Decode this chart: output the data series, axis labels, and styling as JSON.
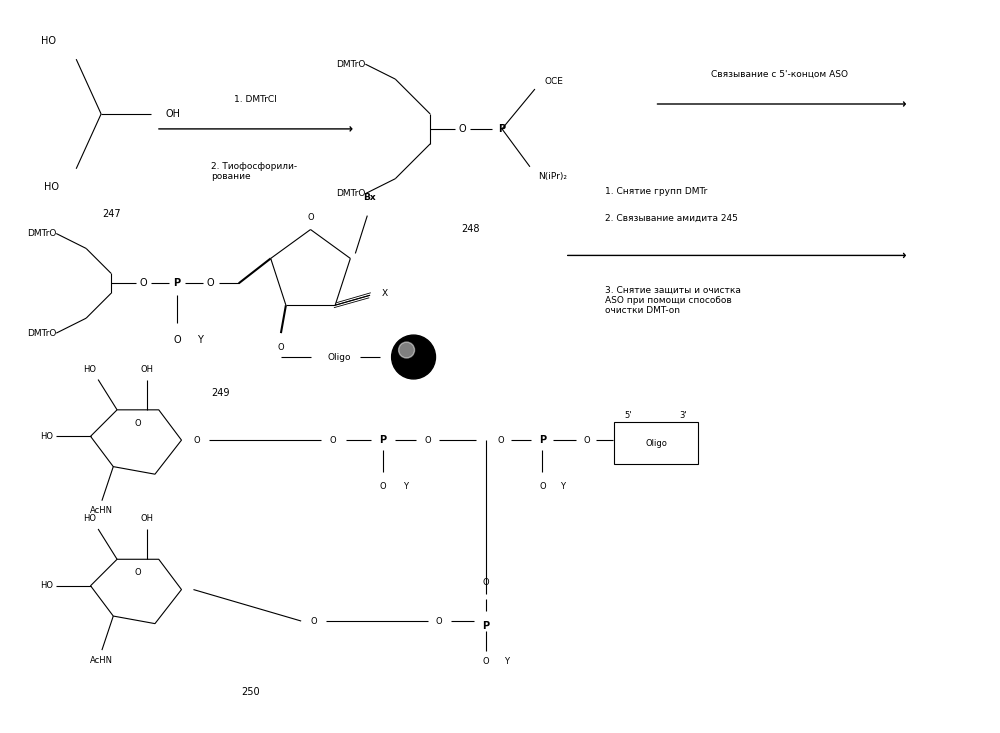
{
  "bg_color": "#ffffff",
  "fig_width": 10.0,
  "fig_height": 7.33,
  "dpi": 100,
  "label_247": "247",
  "label_248": "248",
  "label_249": "249",
  "label_250": "250",
  "step1_a": "1. DMTrCl",
  "step1_b": "2. Тиофосфорили-\nрование",
  "arrow1_label": "Связывание с 5'-концом ASO",
  "step2_a": "1. Снятие групп DMTr",
  "step2_b": "2. Связывание амидита 245",
  "step2_c": "3. Снятие защиты и очистка\nASO при помощи способов\nочистки DMT-on"
}
